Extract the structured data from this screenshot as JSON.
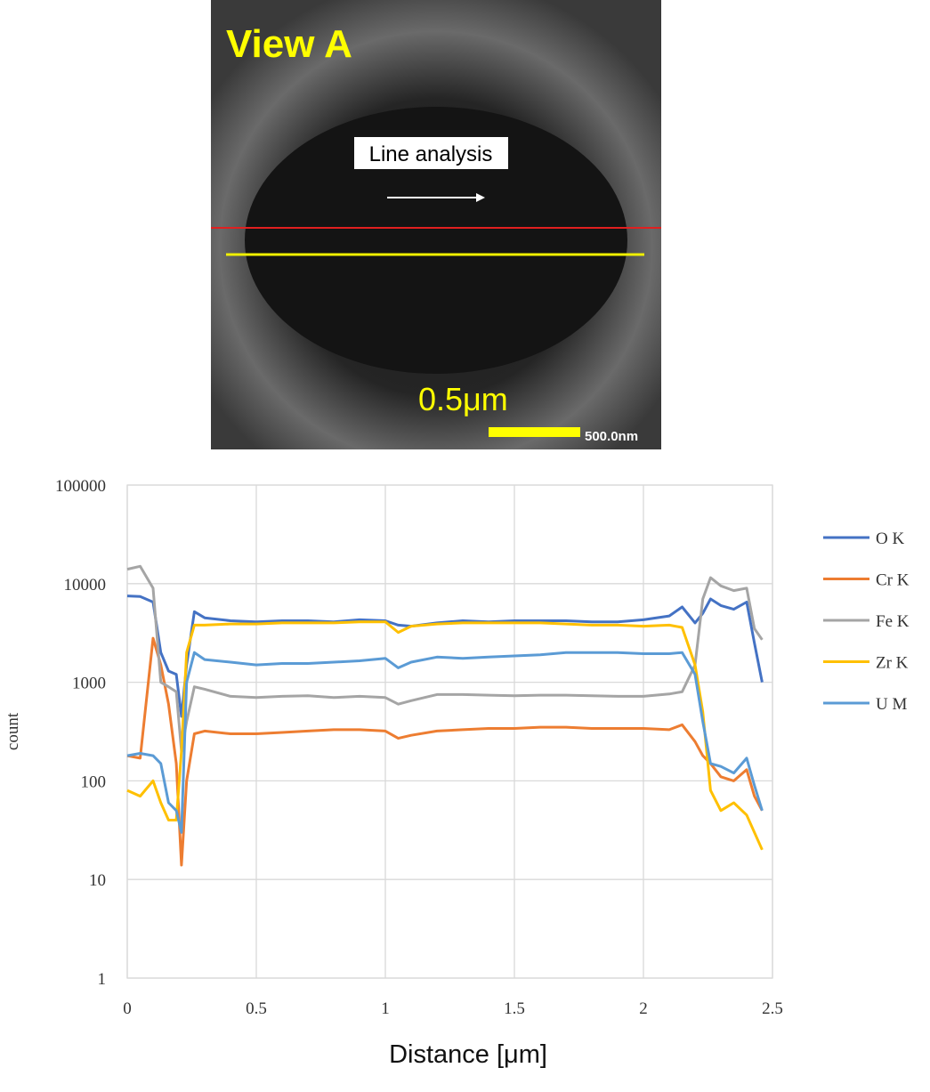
{
  "image": {
    "label": "View A",
    "annotation": "Line analysis",
    "scale_label": "0.5μm",
    "scale_bar_text": "500.0nm"
  },
  "chart_data": {
    "type": "line",
    "y_label": "count",
    "x_label": "Distance [μm]",
    "log_y": true,
    "grid": true,
    "legend": "right",
    "xlim": [
      0,
      2.5
    ],
    "xticks": [
      0,
      0.5,
      1,
      1.5,
      2,
      2.5
    ],
    "ylim": [
      1,
      100000
    ],
    "yticks": [
      1,
      10,
      100,
      1000,
      10000,
      100000
    ],
    "x": [
      0,
      0.05,
      0.1,
      0.13,
      0.16,
      0.19,
      0.21,
      0.23,
      0.26,
      0.3,
      0.4,
      0.5,
      0.6,
      0.7,
      0.8,
      0.9,
      1.0,
      1.05,
      1.1,
      1.2,
      1.3,
      1.4,
      1.5,
      1.6,
      1.7,
      1.8,
      1.9,
      2.0,
      2.1,
      2.15,
      2.2,
      2.23,
      2.26,
      2.3,
      2.35,
      2.4,
      2.43,
      2.46
    ],
    "series": [
      {
        "name": "O K",
        "color": "#4472c4",
        "values": [
          7500,
          7400,
          6500,
          2000,
          1300,
          1200,
          450,
          1500,
          5200,
          4500,
          4200,
          4100,
          4200,
          4200,
          4100,
          4300,
          4200,
          3800,
          3700,
          4000,
          4200,
          4100,
          4200,
          4200,
          4200,
          4100,
          4100,
          4300,
          4700,
          5800,
          4000,
          5000,
          7000,
          6000,
          5500,
          6500,
          2500,
          1000
        ]
      },
      {
        "name": "Cr K",
        "color": "#ed7d31",
        "values": [
          180,
          170,
          2800,
          1500,
          600,
          150,
          14,
          100,
          300,
          320,
          300,
          300,
          310,
          320,
          330,
          330,
          320,
          270,
          290,
          320,
          330,
          340,
          340,
          350,
          350,
          340,
          340,
          340,
          330,
          370,
          250,
          180,
          150,
          110,
          100,
          130,
          70,
          50
        ]
      },
      {
        "name": "Fe K",
        "color": "#a5a5a5",
        "values": [
          14000,
          15000,
          9000,
          1000,
          900,
          800,
          200,
          400,
          900,
          850,
          720,
          700,
          720,
          730,
          700,
          720,
          700,
          600,
          650,
          750,
          750,
          740,
          730,
          740,
          740,
          730,
          720,
          720,
          760,
          800,
          1500,
          7000,
          11500,
          9500,
          8500,
          9000,
          3500,
          2700
        ]
      },
      {
        "name": "Zr K",
        "color": "#ffc000",
        "values": [
          80,
          70,
          100,
          60,
          40,
          40,
          200,
          2000,
          3800,
          3800,
          3900,
          3900,
          4000,
          4000,
          4000,
          4100,
          4100,
          3200,
          3700,
          3900,
          4000,
          4000,
          4000,
          4000,
          3900,
          3800,
          3800,
          3700,
          3800,
          3600,
          1500,
          500,
          80,
          50,
          60,
          45,
          30,
          20
        ]
      },
      {
        "name": "U M",
        "color": "#5b9bd5",
        "values": [
          180,
          190,
          180,
          150,
          60,
          50,
          30,
          1000,
          2000,
          1700,
          1600,
          1500,
          1550,
          1550,
          1600,
          1650,
          1750,
          1400,
          1600,
          1800,
          1750,
          1800,
          1850,
          1900,
          2000,
          2000,
          2000,
          1950,
          1950,
          2000,
          1200,
          400,
          150,
          140,
          120,
          170,
          90,
          50
        ]
      }
    ]
  }
}
